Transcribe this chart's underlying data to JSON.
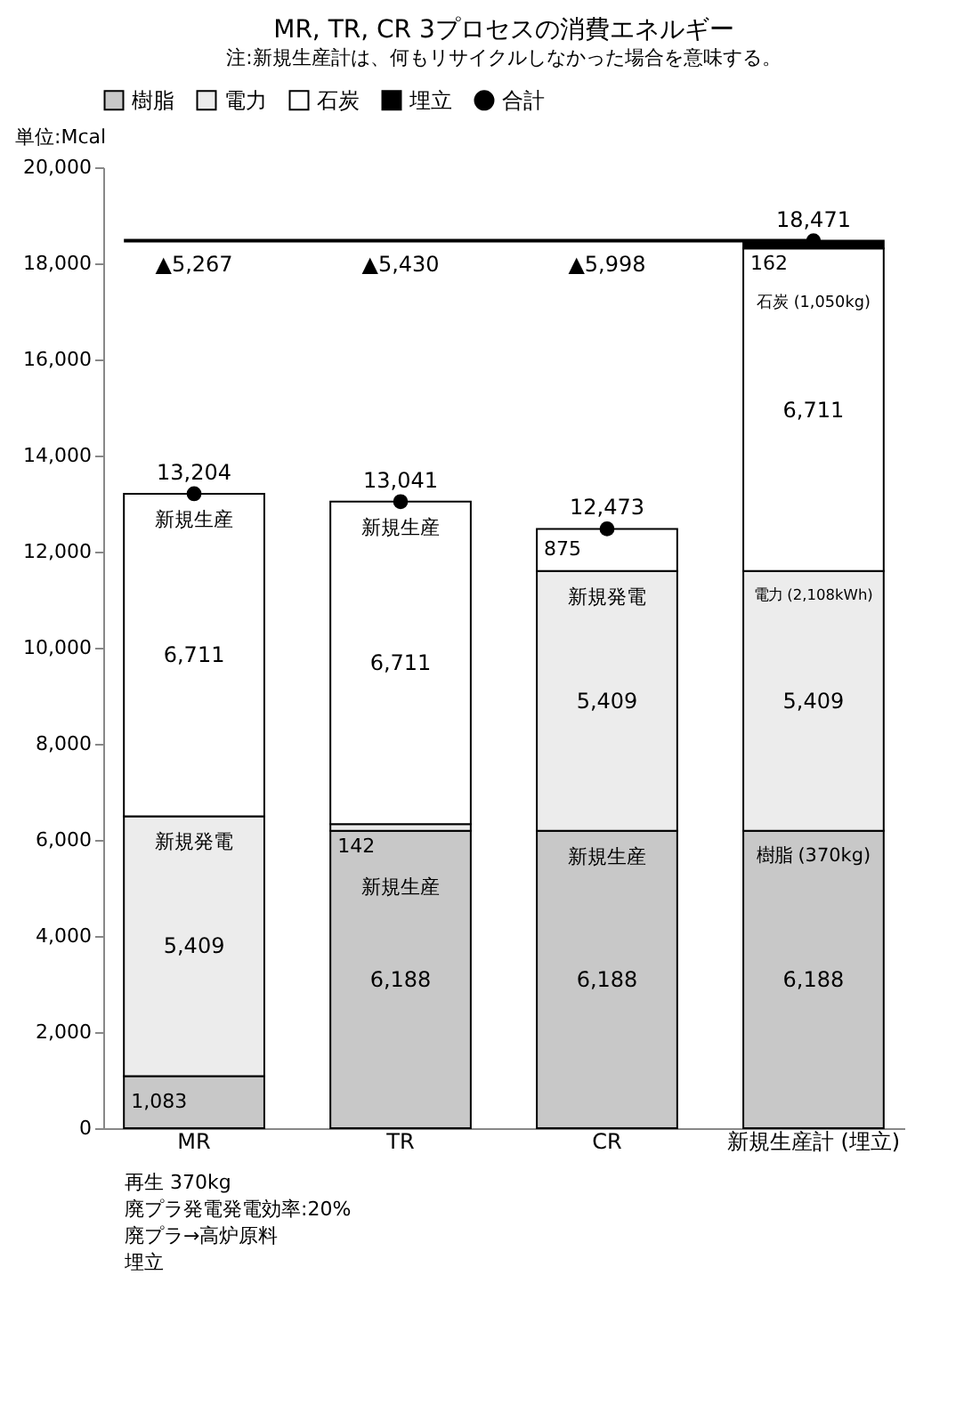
{
  "chart_data": {
    "type": "bar",
    "stacked": true,
    "title": "MR, TR, CR 3プロセスの消費エネルギー",
    "ylabel": "単位:Mcal",
    "categories": [
      "MR",
      "TR",
      "CR",
      "新規生産計 (埋立)"
    ],
    "series": [
      {
        "name": "樹脂",
        "color": "#c8c8c8",
        "values": [
          1083,
          6188,
          6188,
          6188
        ],
        "value_labels": [
          "1,083",
          "6,188",
          "6,188",
          "6,188"
        ]
      },
      {
        "name": "電力",
        "color": "#ececec",
        "values": [
          5409,
          142,
          5409,
          5409
        ],
        "value_labels": [
          "5,409",
          "142",
          "5,409",
          "5,409"
        ]
      },
      {
        "name": "石炭",
        "color": "#ffffff",
        "values": [
          6711,
          6711,
          875,
          6711
        ],
        "value_labels": [
          "6,711",
          "6,711",
          "875",
          "6,711"
        ]
      },
      {
        "name": "埋立",
        "color": "#000000",
        "values": [
          null,
          null,
          null,
          162
        ],
        "value_labels": [
          null,
          null,
          null,
          "162"
        ]
      },
      {
        "name": "合計",
        "type": "scatter",
        "color": "#000000",
        "values": [
          13204,
          13041,
          12473,
          18471
        ],
        "value_labels": [
          "13,204",
          "13,041",
          "12,473",
          "18,471"
        ]
      }
    ],
    "marker": "circle",
    "legend": "top",
    "grid": false,
    "ylim": [
      0,
      20000
    ],
    "yticks": [
      0,
      {
        "value": 2000,
        "label": "2,000"
      },
      {
        "value": 4000,
        "label": "4,000"
      },
      {
        "value": 6000,
        "label": "6,000"
      },
      {
        "value": 8000,
        "label": "8,000"
      },
      {
        "value": 10000,
        "label": "10,000"
      },
      {
        "value": 12000,
        "label": "12,000"
      },
      {
        "value": 14000,
        "label": "14,000"
      },
      {
        "value": 16000,
        "label": "16,000"
      },
      {
        "value": 18000,
        "label": "18,000"
      },
      {
        "value": 20000,
        "label": "20,000"
      }
    ],
    "ref_lines": [
      {
        "axis": "y",
        "value": 18471
      }
    ],
    "annotations": [
      "注:新規生産計は、何もリサイクルしなかった場合を意味する。",
      "再生 370kg",
      "廃プラ発電発電効率:20%",
      "廃プラ→高炉原料",
      "埋立",
      {
        "text": "新規発電",
        "x": "MR",
        "y": 6492
      },
      {
        "text": "新規生産",
        "x": "MR",
        "y": 13203
      },
      {
        "text": "▲5,267",
        "x": "MR",
        "y": 18471
      },
      {
        "text": "新規生産",
        "x": "TR",
        "y": 6188
      },
      {
        "text": "新規生産",
        "x": "TR",
        "y": 13041
      },
      {
        "text": "▲5,430",
        "x": "TR",
        "y": 18471
      },
      {
        "text": "新規生産",
        "x": "CR",
        "y": 6188
      },
      {
        "text": "新規発電",
        "x": "CR",
        "y": 11597
      },
      {
        "text": "▲5,998",
        "x": "CR",
        "y": 18471
      },
      {
        "text": "樹脂 (370kg)",
        "x": "新規生産計 (埋立)",
        "y": 6188
      },
      {
        "text": "電力 (2,108kWh)",
        "x": "新規生産計 (埋立)",
        "y": 11597
      },
      {
        "text": "石炭 (1,050kg)",
        "x": "新規生産計 (埋立)",
        "y": 18308
      }
    ]
  }
}
